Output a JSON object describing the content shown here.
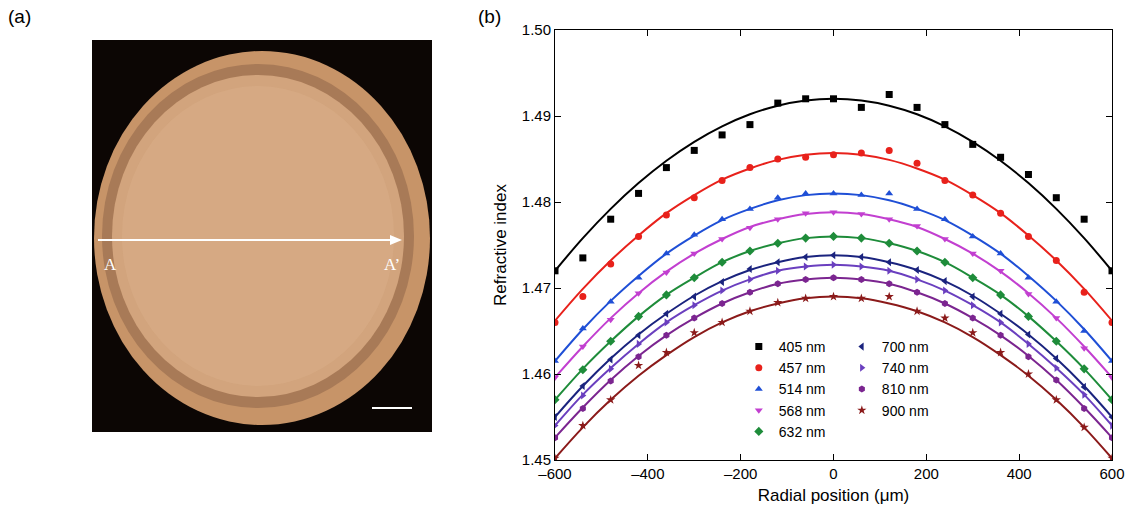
{
  "photo": {
    "panel_label": "(a)",
    "start_label": "A",
    "end_label": "A’"
  },
  "chart_data": {
    "type": "scatter",
    "panel_label": "(b)",
    "x_label": "Radial position (μm)",
    "y_label": "Refractive index",
    "x": [
      -600,
      -540,
      -480,
      -420,
      -360,
      -300,
      -240,
      -180,
      -120,
      -60,
      0,
      60,
      120,
      180,
      240,
      300,
      360,
      420,
      480,
      540,
      600
    ],
    "xlim": [
      -600,
      600
    ],
    "xticks": [
      {
        "value": -600,
        "label": "–600"
      },
      {
        "value": -400,
        "label": "–400"
      },
      {
        "value": -200,
        "label": "–200"
      },
      0,
      200,
      400,
      600
    ],
    "ylim": [
      1.45,
      1.5
    ],
    "yticks": [
      1.45,
      1.46,
      1.47,
      1.48,
      1.49,
      {
        "value": 1.5,
        "label": "1.50"
      }
    ],
    "grid": false,
    "legend": "bottom",
    "series": [
      {
        "name": "405 nm",
        "color": "#000000",
        "marker": "square",
        "values": [
          1.472,
          1.4735,
          1.478,
          1.481,
          1.484,
          1.486,
          1.4878,
          1.489,
          1.4915,
          1.492,
          1.492,
          1.491,
          1.4925,
          1.491,
          1.489,
          1.4867,
          1.4852,
          1.4832,
          1.4805,
          1.478,
          1.472
        ],
        "fit": [
          1.472,
          1.4758,
          1.4792,
          1.4822,
          1.4848,
          1.487,
          1.4888,
          1.4902,
          1.4912,
          1.4918,
          1.492,
          1.4918,
          1.4912,
          1.4902,
          1.4888,
          1.487,
          1.4848,
          1.4822,
          1.4792,
          1.4758,
          1.472
        ]
      },
      {
        "name": "457 nm",
        "color": "#e8211b",
        "marker": "circle",
        "values": [
          1.466,
          1.469,
          1.4728,
          1.476,
          1.4785,
          1.4805,
          1.4825,
          1.484,
          1.485,
          1.4852,
          1.4855,
          1.4857,
          1.486,
          1.4845,
          1.4825,
          1.4808,
          1.4787,
          1.476,
          1.4732,
          1.4695,
          1.466
        ],
        "fit": [
          1.4662,
          1.4699,
          1.4732,
          1.4761,
          1.4787,
          1.4808,
          1.4826,
          1.4839,
          1.4849,
          1.4855,
          1.4857,
          1.4855,
          1.4849,
          1.4839,
          1.4826,
          1.4808,
          1.4787,
          1.4761,
          1.4732,
          1.4699,
          1.4662
        ]
      },
      {
        "name": "514 nm",
        "color": "#1f4fd6",
        "marker": "triangle-up",
        "values": [
          1.4615,
          1.4653,
          1.4684,
          1.4712,
          1.474,
          1.4762,
          1.478,
          1.4792,
          1.4805,
          1.481,
          1.481,
          1.4808,
          1.481,
          1.4792,
          1.478,
          1.476,
          1.474,
          1.4712,
          1.4684,
          1.465,
          1.4615
        ],
        "fit": [
          1.4615,
          1.4652,
          1.4685,
          1.4714,
          1.474,
          1.4761,
          1.4779,
          1.4792,
          1.4802,
          1.4808,
          1.481,
          1.4808,
          1.4802,
          1.4792,
          1.4779,
          1.4761,
          1.474,
          1.4714,
          1.4685,
          1.4652,
          1.4615
        ]
      },
      {
        "name": "568 nm",
        "color": "#c23fd0",
        "marker": "triangle-down",
        "values": [
          1.4596,
          1.4632,
          1.4663,
          1.4694,
          1.4718,
          1.474,
          1.4757,
          1.477,
          1.478,
          1.4787,
          1.4788,
          1.4786,
          1.478,
          1.4772,
          1.4757,
          1.474,
          1.472,
          1.4693,
          1.4665,
          1.463,
          1.4596
        ],
        "fit": [
          1.4596,
          1.4632,
          1.4665,
          1.4694,
          1.4719,
          1.474,
          1.4757,
          1.4771,
          1.478,
          1.4786,
          1.4788,
          1.4786,
          1.478,
          1.4771,
          1.4757,
          1.474,
          1.4719,
          1.4694,
          1.4665,
          1.4632,
          1.4596
        ]
      },
      {
        "name": "632 nm",
        "color": "#1e8c3a",
        "marker": "diamond",
        "values": [
          1.457,
          1.4605,
          1.4638,
          1.4667,
          1.4692,
          1.4712,
          1.473,
          1.4743,
          1.4752,
          1.4758,
          1.476,
          1.4758,
          1.4752,
          1.4743,
          1.473,
          1.4712,
          1.4692,
          1.4667,
          1.4638,
          1.4606,
          1.457
        ],
        "fit": [
          1.457,
          1.4606,
          1.4638,
          1.4667,
          1.4692,
          1.4712,
          1.473,
          1.4743,
          1.4752,
          1.4758,
          1.476,
          1.4758,
          1.4752,
          1.4743,
          1.473,
          1.4712,
          1.4692,
          1.4667,
          1.4638,
          1.4606,
          1.457
        ]
      },
      {
        "name": "700 nm",
        "color": "#1a237e",
        "marker": "triangle-left",
        "values": [
          1.455,
          1.4586,
          1.4617,
          1.4645,
          1.467,
          1.469,
          1.4707,
          1.4722,
          1.473,
          1.4736,
          1.4738,
          1.4736,
          1.473,
          1.4721,
          1.4708,
          1.469,
          1.467,
          1.4646,
          1.4618,
          1.4585,
          1.455
        ],
        "fit": [
          1.455,
          1.4586,
          1.4618,
          1.4646,
          1.467,
          1.4691,
          1.4708,
          1.4721,
          1.473,
          1.4736,
          1.4738,
          1.4736,
          1.473,
          1.4721,
          1.4708,
          1.4691,
          1.467,
          1.4646,
          1.4618,
          1.4586,
          1.455
        ]
      },
      {
        "name": "740 nm",
        "color": "#6a3fbf",
        "marker": "triangle-right",
        "values": [
          1.454,
          1.4575,
          1.4606,
          1.4635,
          1.466,
          1.468,
          1.4697,
          1.471,
          1.472,
          1.4725,
          1.4727,
          1.4725,
          1.472,
          1.471,
          1.4697,
          1.468,
          1.466,
          1.4635,
          1.4607,
          1.4576,
          1.454
        ],
        "fit": [
          1.454,
          1.4576,
          1.4607,
          1.4635,
          1.466,
          1.468,
          1.4697,
          1.471,
          1.472,
          1.4725,
          1.4727,
          1.4725,
          1.472,
          1.471,
          1.4697,
          1.468,
          1.466,
          1.4635,
          1.4607,
          1.4576,
          1.454
        ]
      },
      {
        "name": "810 nm",
        "color": "#7b2590",
        "marker": "hexagon",
        "values": [
          1.4526,
          1.456,
          1.4592,
          1.462,
          1.4645,
          1.4665,
          1.4682,
          1.4695,
          1.4705,
          1.471,
          1.4712,
          1.471,
          1.4705,
          1.4695,
          1.4682,
          1.4665,
          1.4645,
          1.462,
          1.4593,
          1.456,
          1.4526
        ],
        "fit": [
          1.4526,
          1.4561,
          1.4593,
          1.4621,
          1.4645,
          1.4665,
          1.4682,
          1.4695,
          1.4705,
          1.471,
          1.4712,
          1.471,
          1.4705,
          1.4695,
          1.4682,
          1.4665,
          1.4645,
          1.4621,
          1.4593,
          1.4561,
          1.4526
        ]
      },
      {
        "name": "900 nm",
        "color": "#8b1a1a",
        "marker": "star",
        "values": [
          1.4502,
          1.454,
          1.457,
          1.461,
          1.4625,
          1.4648,
          1.466,
          1.4673,
          1.4683,
          1.4688,
          1.469,
          1.4688,
          1.469,
          1.4673,
          1.4665,
          1.4648,
          1.4625,
          1.46,
          1.457,
          1.4538,
          1.4502
        ],
        "fit": [
          1.4502,
          1.4538,
          1.457,
          1.4598,
          1.4622,
          1.4643,
          1.466,
          1.4673,
          1.4682,
          1.4688,
          1.469,
          1.4688,
          1.4682,
          1.4673,
          1.466,
          1.4643,
          1.4622,
          1.4598,
          1.457,
          1.4538,
          1.4502
        ]
      }
    ]
  }
}
